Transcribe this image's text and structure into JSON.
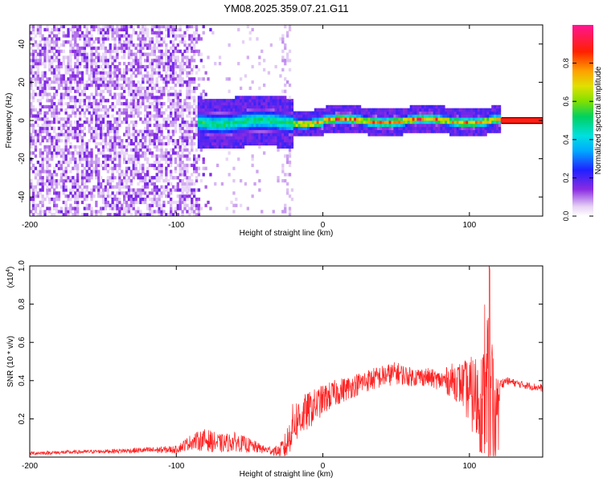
{
  "title": "YM08.2025.359.07.21.G11",
  "chart_data": [
    {
      "type": "heatmap",
      "xlabel": "Height of straight line (km)",
      "ylabel": "Frequency (Hz)",
      "xlim": [
        -200,
        150
      ],
      "ylim": [
        -50,
        50
      ],
      "xticks": [
        -200,
        -100,
        0,
        100
      ],
      "xtick_labels": [
        "-200",
        "-100",
        "0",
        "100"
      ],
      "yticks": [
        -40,
        -20,
        0,
        20,
        40
      ],
      "ytick_labels": [
        "-40",
        "-20",
        "0",
        "20",
        "40"
      ],
      "colorbar": {
        "label": "Normalized spectral amplitude",
        "range": [
          0,
          1
        ],
        "ticks": [
          0.0,
          0.2,
          0.4,
          0.6,
          0.8
        ],
        "tick_labels": [
          "0.0",
          "0.2",
          "0.4",
          "0.6",
          "0.8"
        ]
      },
      "features": {
        "noise_region_x": [
          -200,
          -75
        ],
        "band_start_x": -85,
        "band_end_x": 122,
        "band_center_hz": 0,
        "strong_band_x": [
          -20,
          122
        ],
        "trace_line_x": [
          122,
          150
        ],
        "faint_column_x": -25
      }
    },
    {
      "type": "line",
      "xlabel": "Height of straight line (km)",
      "ylabel": "SNR (10 * v/v)",
      "multiplier_base": "(x10",
      "multiplier_exp": "4",
      "multiplier_close": ")",
      "xlim": [
        -200,
        150
      ],
      "ylim": [
        0,
        1.0
      ],
      "xticks": [
        -200,
        -100,
        0,
        100
      ],
      "xtick_labels": [
        "-200",
        "-100",
        "0",
        "100"
      ],
      "yticks": [
        0.2,
        0.4,
        0.6,
        0.8,
        1.0
      ],
      "ytick_labels": [
        "0.2",
        "0.4",
        "0.6",
        "0.8",
        "1.0"
      ],
      "color": "#ff2020",
      "envelope": {
        "x": [
          -200,
          -150,
          -100,
          -90,
          -80,
          -70,
          -60,
          -50,
          -40,
          -30,
          -25,
          -20,
          -10,
          0,
          10,
          20,
          30,
          40,
          50,
          60,
          70,
          80,
          90,
          95,
          100,
          105,
          110,
          113,
          116,
          118,
          121,
          125,
          135,
          150
        ],
        "base": [
          0.02,
          0.03,
          0.04,
          0.08,
          0.09,
          0.07,
          0.08,
          0.06,
          0.04,
          0.03,
          0.06,
          0.18,
          0.24,
          0.3,
          0.34,
          0.37,
          0.4,
          0.42,
          0.44,
          0.42,
          0.42,
          0.4,
          0.4,
          0.38,
          0.34,
          0.3,
          0.28,
          0.32,
          0.28,
          0.2,
          0.38,
          0.4,
          0.38,
          0.36
        ],
        "amp": [
          0.01,
          0.01,
          0.02,
          0.04,
          0.06,
          0.05,
          0.05,
          0.04,
          0.02,
          0.03,
          0.08,
          0.12,
          0.1,
          0.08,
          0.07,
          0.06,
          0.06,
          0.06,
          0.06,
          0.05,
          0.05,
          0.05,
          0.1,
          0.12,
          0.18,
          0.25,
          0.3,
          0.45,
          0.35,
          0.25,
          0.03,
          0.02,
          0.02,
          0.02
        ]
      }
    }
  ]
}
